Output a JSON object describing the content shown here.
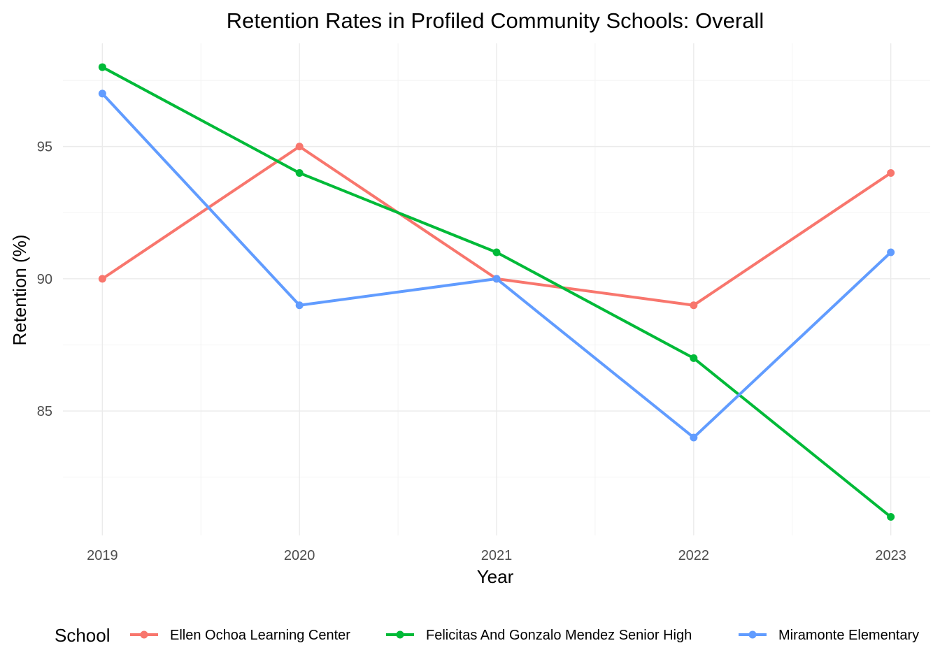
{
  "chart_data": {
    "type": "line",
    "title": "Retention Rates in Profiled Community Schools: Overall",
    "xlabel": "Year",
    "ylabel": "Retention (%)",
    "x": [
      "2019",
      "2020",
      "2021",
      "2022",
      "2023"
    ],
    "x_values": [
      2019,
      2020,
      2021,
      2022,
      2023
    ],
    "xlim": [
      2018.8,
      2023.2
    ],
    "ylim": [
      80.3,
      98.9
    ],
    "y_ticks": [
      85,
      90,
      95
    ],
    "y_tick_labels": [
      "85",
      "90",
      "95"
    ],
    "y_minor_ticks": [
      82.5,
      87.5,
      92.5,
      97.5
    ],
    "grid": true,
    "legend": {
      "title": "School",
      "position": "bottom"
    },
    "series": [
      {
        "name": "Ellen Ochoa Learning Center",
        "color": "#F8766D",
        "values": [
          90,
          95,
          90,
          89,
          94
        ]
      },
      {
        "name": "Felicitas And Gonzalo Mendez Senior High",
        "color": "#00BA38",
        "values": [
          98,
          94,
          91,
          87,
          81
        ]
      },
      {
        "name": "Miramonte Elementary",
        "color": "#619CFF",
        "values": [
          97,
          89,
          90,
          84,
          91
        ]
      }
    ]
  }
}
